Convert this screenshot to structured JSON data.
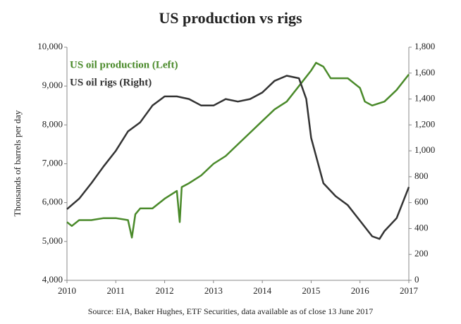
{
  "chart_data": {
    "type": "line",
    "title": "US production vs rigs",
    "ylabel": "Thousands of barrels per day",
    "source": "Source: EIA, Baker Hughes, ETF Securities, data available as of close 13 June 2017",
    "legend": "upper left",
    "xlim": [
      2010,
      2017
    ],
    "xticks": [
      2010,
      2011,
      2012,
      2013,
      2014,
      2015,
      2016,
      2017
    ],
    "ylim": [
      4000,
      10000
    ],
    "yticks": [
      {
        "value": 4000,
        "label": "4,000"
      },
      {
        "value": 5000,
        "label": "5,000"
      },
      {
        "value": 6000,
        "label": "6,000"
      },
      {
        "value": 7000,
        "label": "7,000"
      },
      {
        "value": 8000,
        "label": "8,000"
      },
      {
        "value": 9000,
        "label": "9,000"
      },
      {
        "value": 10000,
        "label": "10,000"
      }
    ],
    "y2lim": [
      0,
      1800
    ],
    "y2ticks": [
      0,
      200,
      400,
      600,
      800,
      {
        "value": 1000,
        "label": "1,000"
      },
      {
        "value": 1200,
        "label": "1,200"
      },
      {
        "value": 1400,
        "label": "1,400"
      },
      {
        "value": 1600,
        "label": "1,600"
      },
      {
        "value": 1800,
        "label": "1,800"
      }
    ],
    "series": [
      {
        "name": "US oil production (Left)",
        "color": "#4a8a2a",
        "axis": "y",
        "x": [
          2010.0,
          2010.1,
          2010.25,
          2010.5,
          2010.75,
          2011.0,
          2011.25,
          2011.33,
          2011.4,
          2011.5,
          2011.75,
          2012.0,
          2012.25,
          2012.31,
          2012.35,
          2012.5,
          2012.75,
          2013.0,
          2013.25,
          2013.5,
          2013.75,
          2014.0,
          2014.25,
          2014.5,
          2014.75,
          2015.0,
          2015.1,
          2015.25,
          2015.4,
          2015.75,
          2016.0,
          2016.1,
          2016.25,
          2016.5,
          2016.75,
          2017.0
        ],
        "values": [
          5500,
          5400,
          5550,
          5550,
          5600,
          5600,
          5550,
          5100,
          5700,
          5850,
          5850,
          6100,
          6300,
          5500,
          6400,
          6500,
          6700,
          7000,
          7200,
          7500,
          7800,
          8100,
          8400,
          8600,
          9000,
          9400,
          9600,
          9500,
          9200,
          9200,
          8950,
          8600,
          8500,
          8600,
          8900,
          9300
        ]
      },
      {
        "name": "US oil rigs (Right)",
        "color": "#333333",
        "axis": "y2",
        "x": [
          2010.0,
          2010.25,
          2010.5,
          2010.75,
          2011.0,
          2011.25,
          2011.5,
          2011.75,
          2012.0,
          2012.25,
          2012.5,
          2012.75,
          2013.0,
          2013.25,
          2013.5,
          2013.75,
          2014.0,
          2014.25,
          2014.5,
          2014.75,
          2014.9,
          2015.0,
          2015.25,
          2015.5,
          2015.75,
          2016.0,
          2016.25,
          2016.4,
          2016.5,
          2016.75,
          2017.0
        ],
        "values": [
          550,
          630,
          750,
          880,
          1000,
          1150,
          1220,
          1350,
          1420,
          1420,
          1400,
          1350,
          1350,
          1400,
          1380,
          1400,
          1450,
          1540,
          1580,
          1560,
          1400,
          1100,
          750,
          650,
          580,
          460,
          340,
          320,
          380,
          480,
          720
        ]
      }
    ]
  }
}
